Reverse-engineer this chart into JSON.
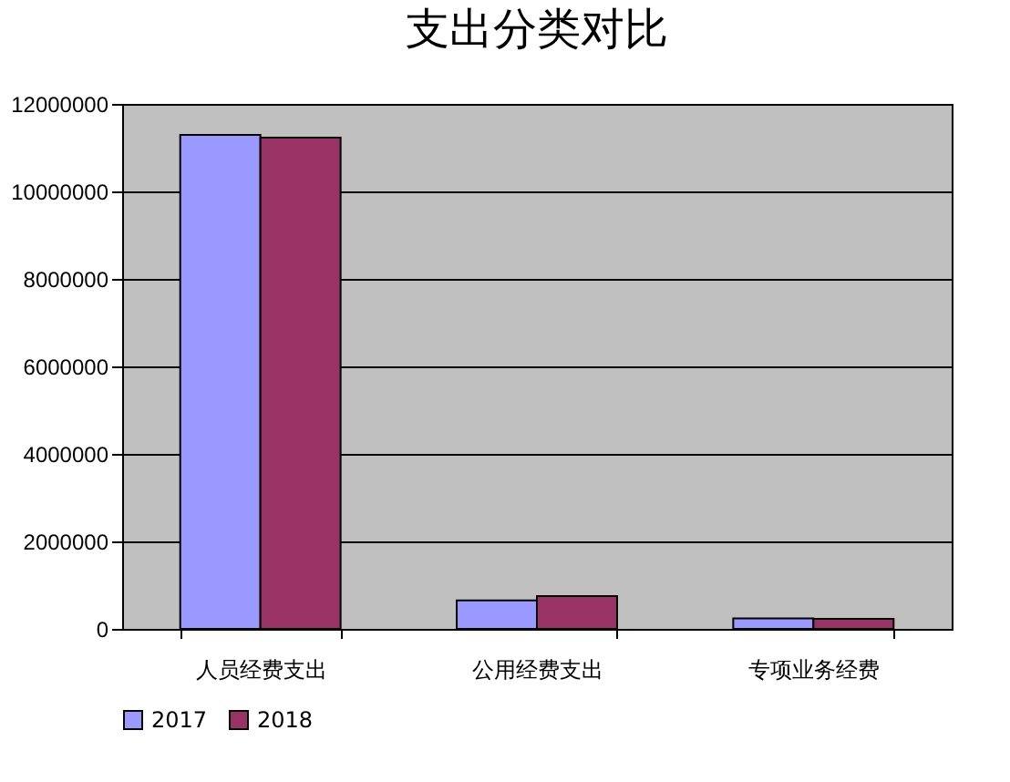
{
  "chart_data": {
    "type": "bar",
    "title": "支出分类对比",
    "categories": [
      "人员经费支出",
      "公用经费支出",
      "专项业务经费"
    ],
    "series": [
      {
        "name": "2017",
        "color": "#9999ff",
        "values": [
          11290000,
          650000,
          240000
        ]
      },
      {
        "name": "2018",
        "color": "#993366",
        "values": [
          11230000,
          750000,
          230000
        ]
      }
    ],
    "ylim": [
      0,
      12000000
    ],
    "yticks": [
      0,
      2000000,
      4000000,
      6000000,
      8000000,
      10000000,
      12000000
    ],
    "grid": "y",
    "legend": "bottom"
  }
}
